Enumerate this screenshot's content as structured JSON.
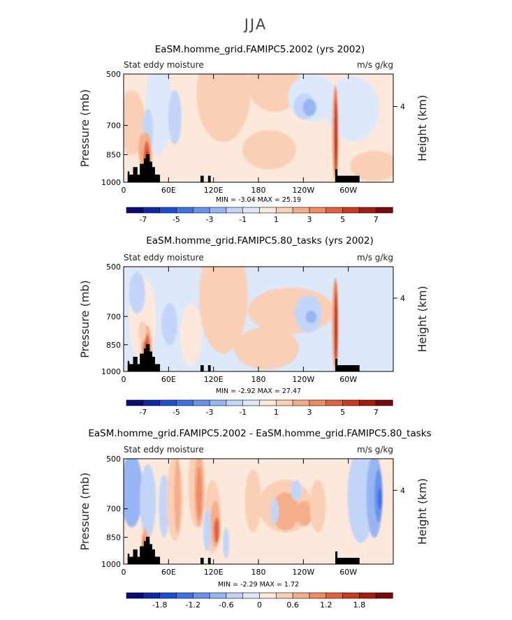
{
  "figure_title": "JJA",
  "chart_data": [
    {
      "type": "heatmap",
      "title": "EaSM.homme_grid.FAMIPC5.2002 (yrs 2002)",
      "left_label": "Stat eddy moisture",
      "right_label": "m/s g/kg",
      "ylabel": "Pressure (mb)",
      "ylabel_right": "Height (km)",
      "x_ticks": [
        "0",
        "60E",
        "120E",
        "180",
        "120W",
        "60W"
      ],
      "y_ticks": [
        "500",
        "700",
        "850",
        "1000"
      ],
      "y_right_ticks": [
        "4"
      ],
      "minmax": "MIN = -3.04 MAX = 25.19",
      "min": -3.04,
      "max": 25.19,
      "colorbar_labels": [
        "-7",
        "-5",
        "-3",
        "-1",
        "1",
        "3",
        "5",
        "7"
      ],
      "colorbar_range": [
        -8,
        8
      ],
      "contour_interval": 1
    },
    {
      "type": "heatmap",
      "title": "EaSM.homme_grid.FAMIPC5.80_tasks (yrs 2002)",
      "left_label": "Stat eddy moisture",
      "right_label": "m/s g/kg",
      "ylabel": "Pressure (mb)",
      "ylabel_right": "Height (km)",
      "x_ticks": [
        "0",
        "60E",
        "120E",
        "180",
        "120W",
        "60W"
      ],
      "y_ticks": [
        "500",
        "700",
        "850",
        "1000"
      ],
      "y_right_ticks": [
        "4"
      ],
      "minmax": "MIN = -2.92 MAX = 27.47",
      "min": -2.92,
      "max": 27.47,
      "colorbar_labels": [
        "-7",
        "-5",
        "-3",
        "-1",
        "1",
        "3",
        "5",
        "7"
      ],
      "colorbar_range": [
        -8,
        8
      ],
      "contour_interval": 1
    },
    {
      "type": "heatmap",
      "title": "EaSM.homme_grid.FAMIPC5.2002 - EaSM.homme_grid.FAMIPC5.80_tasks",
      "left_label": "Stat eddy moisture",
      "right_label": "m/s g/kg",
      "ylabel": "Pressure (mb)",
      "ylabel_right": "Height (km)",
      "x_ticks": [
        "0",
        "60E",
        "120E",
        "180",
        "120W",
        "60W"
      ],
      "y_ticks": [
        "500",
        "700",
        "850",
        "1000"
      ],
      "y_right_ticks": [
        "4"
      ],
      "minmax": "MIN = -2.29 MAX = 1.72",
      "min": -2.29,
      "max": 1.72,
      "colorbar_labels": [
        "-1.8",
        "-1.2",
        "-0.6",
        "0",
        "0.6",
        "1.2",
        "1.8"
      ],
      "colorbar_range": [
        -2.4,
        2.4
      ],
      "contour_interval": 0.3
    }
  ],
  "colors": {
    "palette": [
      "#0a0a78",
      "#0f2aa8",
      "#1f4fd0",
      "#3d71e6",
      "#6a93ef",
      "#98b5f3",
      "#c2d5f8",
      "#dde8fb",
      "#fde9dc",
      "#f9cfb5",
      "#f5ad8a",
      "#f08a60",
      "#e4623b",
      "#cc3a1d",
      "#a81a0f",
      "#7a0808"
    ],
    "terrain": "#000000"
  }
}
